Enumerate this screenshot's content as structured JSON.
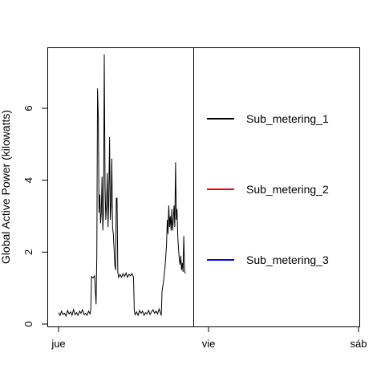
{
  "chart_data": {
    "type": "line",
    "title": "",
    "xlabel": "",
    "ylabel": "Global Active Power (kilowatts)",
    "xlim": [
      0,
      2
    ],
    "ylim": [
      -0.2,
      7.85
    ],
    "yticks": [
      0,
      2,
      4,
      6
    ],
    "xticks": [
      {
        "x": 0,
        "label": "jue"
      },
      {
        "x": 1,
        "label": "vie"
      },
      {
        "x": 2,
        "label": "sáb"
      }
    ],
    "grid": false,
    "legend_position": "right",
    "legend": [
      {
        "label": "Sub_metering_1",
        "color": "#000000"
      },
      {
        "label": "Sub_metering_2",
        "color": "#ff0000"
      },
      {
        "label": "Sub_metering_3",
        "color": "#0000ff"
      }
    ],
    "series": [
      {
        "color": "#000000",
        "points": [
          [
            0.0,
            0.32
          ],
          [
            0.01,
            0.24
          ],
          [
            0.02,
            0.36
          ],
          [
            0.03,
            0.26
          ],
          [
            0.04,
            0.3
          ],
          [
            0.05,
            0.22
          ],
          [
            0.06,
            0.38
          ],
          [
            0.07,
            0.28
          ],
          [
            0.08,
            0.34
          ],
          [
            0.09,
            0.24
          ],
          [
            0.1,
            0.4
          ],
          [
            0.11,
            0.26
          ],
          [
            0.12,
            0.32
          ],
          [
            0.13,
            0.24
          ],
          [
            0.14,
            0.36
          ],
          [
            0.15,
            0.3
          ],
          [
            0.16,
            0.4
          ],
          [
            0.17,
            0.26
          ],
          [
            0.18,
            0.3
          ],
          [
            0.19,
            0.24
          ],
          [
            0.2,
            0.36
          ],
          [
            0.21,
            0.28
          ],
          [
            0.215,
            0.4
          ],
          [
            0.22,
            1.32
          ],
          [
            0.23,
            1.28
          ],
          [
            0.24,
            1.34
          ],
          [
            0.25,
            0.55
          ],
          [
            0.255,
            1.9
          ],
          [
            0.26,
            6.55
          ],
          [
            0.265,
            5.7
          ],
          [
            0.27,
            3.1
          ],
          [
            0.275,
            3.6
          ],
          [
            0.28,
            2.8
          ],
          [
            0.285,
            3.1
          ],
          [
            0.29,
            4.1
          ],
          [
            0.295,
            2.6
          ],
          [
            0.3,
            3.2
          ],
          [
            0.305,
            7.5
          ],
          [
            0.31,
            3.8
          ],
          [
            0.315,
            2.9
          ],
          [
            0.32,
            3.3
          ],
          [
            0.325,
            4.2
          ],
          [
            0.33,
            2.7
          ],
          [
            0.335,
            3.5
          ],
          [
            0.34,
            5.2
          ],
          [
            0.345,
            2.9
          ],
          [
            0.35,
            3.3
          ],
          [
            0.355,
            4.6
          ],
          [
            0.36,
            2.7
          ],
          [
            0.365,
            2.5
          ],
          [
            0.37,
            2.1
          ],
          [
            0.375,
            1.65
          ],
          [
            0.38,
            1.5
          ],
          [
            0.385,
            3.5
          ],
          [
            0.39,
            3.5
          ],
          [
            0.395,
            1.45
          ],
          [
            0.4,
            1.3
          ],
          [
            0.41,
            1.38
          ],
          [
            0.42,
            1.3
          ],
          [
            0.43,
            1.4
          ],
          [
            0.44,
            1.32
          ],
          [
            0.45,
            1.42
          ],
          [
            0.46,
            1.3
          ],
          [
            0.47,
            1.38
          ],
          [
            0.48,
            1.34
          ],
          [
            0.49,
            1.4
          ],
          [
            0.5,
            1.3
          ],
          [
            0.505,
            0.38
          ],
          [
            0.51,
            0.26
          ],
          [
            0.52,
            0.34
          ],
          [
            0.53,
            0.24
          ],
          [
            0.54,
            0.38
          ],
          [
            0.55,
            0.3
          ],
          [
            0.56,
            0.36
          ],
          [
            0.57,
            0.24
          ],
          [
            0.58,
            0.32
          ],
          [
            0.59,
            0.28
          ],
          [
            0.6,
            0.38
          ],
          [
            0.61,
            0.26
          ],
          [
            0.62,
            0.34
          ],
          [
            0.63,
            0.4
          ],
          [
            0.64,
            0.3
          ],
          [
            0.65,
            0.36
          ],
          [
            0.66,
            0.28
          ],
          [
            0.67,
            0.42
          ],
          [
            0.68,
            0.3
          ],
          [
            0.685,
            0.24
          ],
          [
            0.69,
            0.9
          ],
          [
            0.7,
            1.2
          ],
          [
            0.71,
            1.6
          ],
          [
            0.72,
            2.2
          ],
          [
            0.725,
            2.9
          ],
          [
            0.73,
            2.5
          ],
          [
            0.735,
            3.3
          ],
          [
            0.74,
            2.7
          ],
          [
            0.745,
            3.0
          ],
          [
            0.75,
            2.6
          ],
          [
            0.755,
            3.2
          ],
          [
            0.76,
            2.6
          ],
          [
            0.765,
            2.9
          ],
          [
            0.77,
            3.3
          ],
          [
            0.775,
            2.7
          ],
          [
            0.78,
            4.5
          ],
          [
            0.785,
            2.9
          ],
          [
            0.79,
            3.2
          ],
          [
            0.795,
            2.4
          ],
          [
            0.8,
            2.1
          ],
          [
            0.805,
            1.8
          ],
          [
            0.81,
            1.65
          ],
          [
            0.815,
            1.9
          ],
          [
            0.82,
            1.5
          ],
          [
            0.825,
            1.7
          ],
          [
            0.83,
            1.45
          ],
          [
            0.835,
            2.45
          ],
          [
            0.84,
            1.5
          ],
          [
            0.845,
            1.4
          ]
        ]
      }
    ]
  }
}
